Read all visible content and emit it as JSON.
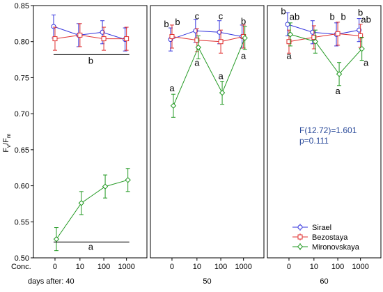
{
  "chart_data": {
    "type": "line",
    "ylabel_main": "F",
    "ylabel_sub1": "v",
    "ylabel_mid": "/F",
    "ylabel_sub2": "m",
    "ylim": [
      0.5,
      0.85
    ],
    "yticks": [
      "0.50",
      "0.55",
      "0.60",
      "0.65",
      "0.70",
      "0.75",
      "0.80",
      "0.85"
    ],
    "ytick_values": [
      0.5,
      0.55,
      0.6,
      0.65,
      0.7,
      0.75,
      0.8,
      0.85
    ],
    "x_categories": [
      "0",
      "10",
      "100",
      "1000"
    ],
    "conc_label": "Conc.",
    "grid": false,
    "legend_position": "bottom-right",
    "legend": [
      "Sirael",
      "Bezostaya",
      "Mironovskaya"
    ],
    "series_colors": {
      "Sirael": "#3333dd",
      "Bezostaya": "#e03030",
      "Mironovskaya": "#229922"
    },
    "stats": {
      "line1": "F(12.72)=1.601",
      "line2": "p=0.111",
      "color": "#2a4a9a"
    },
    "panels": [
      {
        "day_label": "days after: 40",
        "series": [
          {
            "name": "Sirael",
            "values": [
              0.821,
              0.809,
              0.813,
              0.803
            ],
            "err": [
              0.016,
              0.016,
              0.016,
              0.016
            ]
          },
          {
            "name": "Bezostaya",
            "values": [
              0.804,
              0.809,
              0.804,
              0.804
            ],
            "err": [
              0.016,
              0.016,
              0.016,
              0.016
            ]
          },
          {
            "name": "Mironovskaya",
            "values": [
              0.526,
              0.576,
              0.599,
              0.608
            ],
            "err": [
              0.016,
              0.016,
              0.016,
              0.016
            ]
          }
        ],
        "annotations": [
          {
            "text": "b",
            "x": 1.5,
            "y": 0.773,
            "line_y": 0.782,
            "x_from": 0,
            "x_to": 3
          },
          {
            "text": "a",
            "x": 1.5,
            "y": 0.515,
            "line_y": 0.522,
            "x_from": 0,
            "x_to": 3
          }
        ]
      },
      {
        "day_label": "50",
        "series": [
          {
            "name": "Sirael",
            "values": [
              0.803,
              0.815,
              0.813,
              0.807
            ],
            "err": [
              0.016,
              0.016,
              0.016,
              0.016
            ]
          },
          {
            "name": "Bezostaya",
            "values": [
              0.807,
              0.802,
              0.8,
              0.807
            ],
            "err": [
              0.016,
              0.016,
              0.016,
              0.016
            ]
          },
          {
            "name": "Mironovskaya",
            "values": [
              0.711,
              0.792,
              0.729,
              0.805
            ],
            "err": [
              0.016,
              0.016,
              0.016,
              0.016
            ]
          }
        ],
        "labels": [
          {
            "text": "b",
            "x": 0,
            "y": 0.824,
            "dx": -1
          },
          {
            "text": "b",
            "x": 0,
            "y": 0.827,
            "dx": 1
          },
          {
            "text": "c",
            "x": 1,
            "y": 0.835,
            "dx": 0
          },
          {
            "text": "c",
            "x": 2,
            "y": 0.835,
            "dx": 0
          },
          {
            "text": "b",
            "x": 3,
            "y": 0.828,
            "dx": 0
          },
          {
            "text": "a",
            "x": 0,
            "y": 0.735,
            "dx": 0
          },
          {
            "text": "a",
            "x": 1,
            "y": 0.77,
            "dx": 0
          },
          {
            "text": "a",
            "x": 2,
            "y": 0.752,
            "dx": 0
          },
          {
            "text": "a",
            "x": 3,
            "y": 0.78,
            "dx": 0
          }
        ]
      },
      {
        "day_label": "60",
        "series": [
          {
            "name": "Sirael",
            "values": [
              0.824,
              0.813,
              0.81,
              0.816
            ],
            "err": [
              0.016,
              0.016,
              0.016,
              0.016
            ]
          },
          {
            "name": "Bezostaya",
            "values": [
              0.8,
              0.806,
              0.811,
              0.808
            ],
            "err": [
              0.016,
              0.016,
              0.016,
              0.016
            ]
          },
          {
            "name": "Mironovskaya",
            "values": [
              0.81,
              0.8,
              0.755,
              0.79
            ],
            "err": [
              0.016,
              0.016,
              0.016,
              0.016
            ]
          }
        ],
        "labels": [
          {
            "text": "b",
            "x": 0,
            "y": 0.842,
            "dx": -1
          },
          {
            "text": "ab",
            "x": 0,
            "y": 0.834,
            "dx": 1
          },
          {
            "text": "b",
            "x": 2,
            "y": 0.834,
            "dx": -1
          },
          {
            "text": "b",
            "x": 2,
            "y": 0.834,
            "dx": 1
          },
          {
            "text": "b",
            "x": 3,
            "y": 0.84,
            "dx": 0
          },
          {
            "text": "ab",
            "x": 3,
            "y": 0.83,
            "dx": 1
          },
          {
            "text": "a",
            "x": 0,
            "y": 0.78,
            "dx": 0
          },
          {
            "text": "a",
            "x": 2,
            "y": 0.731,
            "dx": 0
          },
          {
            "text": "a",
            "x": 3,
            "y": 0.77,
            "dx": 1
          }
        ]
      }
    ]
  }
}
